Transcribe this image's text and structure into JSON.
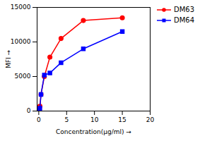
{
  "chart_data": {
    "type": "line",
    "x": [
      0,
      0.1,
      0.2,
      0.4,
      1,
      2,
      4,
      8,
      15
    ],
    "series": [
      {
        "name": "DM63",
        "color": "#FF0000",
        "marker": "circle",
        "values": [
          0,
          200,
          700,
          2400,
          5000,
          7800,
          10500,
          13100,
          13500
        ]
      },
      {
        "name": "DM64",
        "color": "#0000FF",
        "marker": "square",
        "values": [
          0,
          100,
          400,
          2400,
          5200,
          5500,
          7000,
          9000,
          11500
        ]
      }
    ],
    "xlabel": "Concentration(μg/ml)",
    "ylabel": "MFI",
    "xlim": [
      -0.3,
      20
    ],
    "ylim": [
      0,
      15000
    ],
    "xticks": [
      0,
      5,
      10,
      15,
      20
    ],
    "yticks": [
      0,
      5000,
      10000,
      15000
    ],
    "legend": "upper right"
  }
}
